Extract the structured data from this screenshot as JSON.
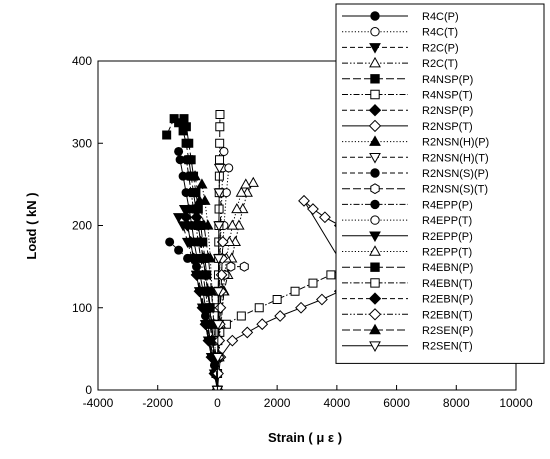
{
  "chart_data": {
    "type": "scatter",
    "xlabel": "Strain ( μ ε )",
    "ylabel": "Load ( kN )",
    "xlim": [
      -4000,
      10000
    ],
    "ylim": [
      0,
      400
    ],
    "xticks": [
      -4000,
      -2000,
      0,
      2000,
      4000,
      6000,
      8000,
      10000
    ],
    "yticks": [
      0,
      100,
      200,
      300,
      400
    ],
    "xtick_labels": [
      "-4000",
      "-2000",
      "0",
      "2000",
      "4000",
      "6000",
      "8000",
      "10000"
    ],
    "ytick_labels": [
      "0",
      "100",
      "200",
      "300",
      "400"
    ],
    "grid": false,
    "legend_position": "top-right",
    "series": [
      {
        "name": "R4C(P)",
        "marker": "circle",
        "fill": "filled",
        "dash": "solid",
        "points": [
          [
            0,
            0
          ],
          [
            -80,
            20
          ],
          [
            -160,
            40
          ],
          [
            -240,
            60
          ],
          [
            -320,
            80
          ],
          [
            -400,
            100
          ],
          [
            -480,
            120
          ],
          [
            -580,
            140
          ],
          [
            -680,
            160
          ],
          [
            -780,
            180
          ],
          [
            -860,
            200
          ],
          [
            -950,
            220
          ],
          [
            -1050,
            240
          ],
          [
            -1150,
            260
          ],
          [
            -1250,
            280
          ],
          [
            -1300,
            290
          ]
        ]
      },
      {
        "name": "R4C(T)",
        "marker": "circle",
        "fill": "open",
        "dash": "dotted",
        "points": [
          [
            0,
            0
          ],
          [
            20,
            40
          ],
          [
            40,
            80
          ],
          [
            60,
            120
          ],
          [
            90,
            160
          ],
          [
            120,
            200
          ],
          [
            150,
            240
          ],
          [
            180,
            270
          ],
          [
            220,
            290
          ]
        ]
      },
      {
        "name": "R2C(P)",
        "marker": "triangle-down",
        "fill": "filled",
        "dash": "dashed",
        "points": [
          [
            0,
            0
          ],
          [
            -80,
            20
          ],
          [
            -180,
            40
          ],
          [
            -280,
            60
          ],
          [
            -380,
            80
          ],
          [
            -480,
            100
          ],
          [
            -580,
            120
          ],
          [
            -700,
            140
          ],
          [
            -850,
            160
          ],
          [
            -1000,
            180
          ],
          [
            -1150,
            200
          ],
          [
            -1300,
            210
          ]
        ]
      },
      {
        "name": "R2C(T)",
        "marker": "triangle-up",
        "fill": "open",
        "dash": "dash-dot-dot",
        "points": [
          [
            0,
            0
          ],
          [
            50,
            40
          ],
          [
            120,
            80
          ],
          [
            220,
            120
          ],
          [
            350,
            140
          ],
          [
            480,
            160
          ],
          [
            600,
            180
          ],
          [
            720,
            200
          ],
          [
            850,
            220
          ],
          [
            1000,
            240
          ],
          [
            1200,
            252
          ]
        ]
      },
      {
        "name": "R4NSP(P)",
        "marker": "square",
        "fill": "filled",
        "dash": "long-dash",
        "points": [
          [
            0,
            0
          ],
          [
            -50,
            20
          ],
          [
            -100,
            40
          ],
          [
            -150,
            60
          ],
          [
            -200,
            80
          ],
          [
            -260,
            100
          ],
          [
            -330,
            120
          ],
          [
            -400,
            140
          ],
          [
            -480,
            160
          ],
          [
            -560,
            180
          ],
          [
            -640,
            200
          ],
          [
            -720,
            220
          ],
          [
            -800,
            240
          ],
          [
            -880,
            260
          ],
          [
            -960,
            280
          ],
          [
            -1050,
            300
          ],
          [
            -1150,
            315
          ],
          [
            -1300,
            325
          ],
          [
            -1450,
            330
          ],
          [
            -1700,
            310
          ]
        ]
      },
      {
        "name": "R4NSP(T)",
        "marker": "square",
        "fill": "open",
        "dash": "dash-dot",
        "points": [
          [
            0,
            0
          ],
          [
            30,
            40
          ],
          [
            80,
            70
          ],
          [
            300,
            80
          ],
          [
            800,
            90
          ],
          [
            1400,
            100
          ],
          [
            2000,
            110
          ],
          [
            2600,
            120
          ],
          [
            3200,
            130
          ],
          [
            3800,
            140
          ],
          [
            4300,
            150
          ],
          [
            4500,
            160
          ]
        ]
      },
      {
        "name": "R2NSP(P)",
        "marker": "diamond",
        "fill": "filled",
        "dash": "dashed",
        "points": [
          [
            0,
            0
          ],
          [
            -100,
            20
          ],
          [
            -200,
            40
          ],
          [
            -300,
            60
          ],
          [
            -400,
            80
          ],
          [
            -500,
            100
          ],
          [
            -600,
            120
          ],
          [
            -700,
            140
          ],
          [
            -800,
            160
          ],
          [
            -900,
            180
          ],
          [
            -1000,
            200
          ],
          [
            -1050,
            210
          ]
        ]
      },
      {
        "name": "R2NSP(T)",
        "marker": "diamond",
        "fill": "open",
        "dash": "solid",
        "points": [
          [
            0,
            0
          ],
          [
            100,
            40
          ],
          [
            500,
            60
          ],
          [
            1000,
            70
          ],
          [
            1500,
            80
          ],
          [
            2100,
            90
          ],
          [
            2800,
            100
          ],
          [
            3500,
            110
          ],
          [
            4100,
            120
          ],
          [
            4400,
            140
          ],
          [
            2900,
            230
          ],
          [
            3200,
            220
          ],
          [
            3600,
            210
          ],
          [
            4100,
            200
          ]
        ]
      },
      {
        "name": "R2NSN(H)(P)",
        "marker": "triangle-up",
        "fill": "filled",
        "dash": "dotted",
        "points": [
          [
            0,
            0
          ],
          [
            -60,
            40
          ],
          [
            -120,
            80
          ],
          [
            -180,
            120
          ],
          [
            -240,
            160
          ],
          [
            -320,
            200
          ],
          [
            -420,
            230
          ],
          [
            -520,
            250
          ]
        ]
      },
      {
        "name": "R2NSN(H)(T)",
        "marker": "triangle-down",
        "fill": "open",
        "dash": "dashed",
        "points": [
          [
            0,
            0
          ],
          [
            20,
            40
          ],
          [
            40,
            80
          ],
          [
            60,
            120
          ],
          [
            80,
            160
          ],
          [
            100,
            200
          ],
          [
            120,
            240
          ]
        ]
      },
      {
        "name": "R2NSN(S)(P)",
        "marker": "circle",
        "fill": "filled",
        "dash": "dashed",
        "points": [
          [
            0,
            0
          ],
          [
            -100,
            30
          ],
          [
            -250,
            60
          ],
          [
            -400,
            90
          ],
          [
            -550,
            120
          ],
          [
            -700,
            150
          ],
          [
            -1000,
            160
          ],
          [
            -1300,
            170
          ],
          [
            -1600,
            180
          ]
        ]
      },
      {
        "name": "R2NSN(S)(T)",
        "marker": "hexagon",
        "fill": "open",
        "dash": "long-dash",
        "points": [
          [
            0,
            0
          ],
          [
            30,
            40
          ],
          [
            60,
            80
          ],
          [
            120,
            120
          ],
          [
            250,
            140
          ],
          [
            450,
            150
          ],
          [
            900,
            150
          ]
        ]
      },
      {
        "name": "R4EPP(P)",
        "marker": "circle",
        "fill": "filled",
        "dash": "dash-dot",
        "points": [
          [
            0,
            0
          ],
          [
            -60,
            20
          ],
          [
            -120,
            40
          ],
          [
            -180,
            60
          ],
          [
            -250,
            80
          ],
          [
            -320,
            100
          ],
          [
            -400,
            120
          ],
          [
            -480,
            140
          ],
          [
            -560,
            160
          ],
          [
            -640,
            180
          ],
          [
            -720,
            200
          ],
          [
            -800,
            220
          ],
          [
            -880,
            240
          ],
          [
            -960,
            260
          ],
          [
            -1040,
            280
          ]
        ]
      },
      {
        "name": "R4EPP(T)",
        "marker": "circle",
        "fill": "open",
        "dash": "dotted",
        "points": [
          [
            0,
            0
          ],
          [
            40,
            40
          ],
          [
            80,
            80
          ],
          [
            120,
            120
          ],
          [
            160,
            160
          ],
          [
            220,
            200
          ],
          [
            300,
            240
          ],
          [
            380,
            270
          ]
        ]
      },
      {
        "name": "R2EPP(P)",
        "marker": "triangle-down",
        "fill": "filled",
        "dash": "solid",
        "points": [
          [
            0,
            0
          ],
          [
            -100,
            20
          ],
          [
            -200,
            40
          ],
          [
            -300,
            60
          ],
          [
            -400,
            80
          ],
          [
            -500,
            100
          ],
          [
            -600,
            120
          ],
          [
            -700,
            140
          ],
          [
            -800,
            160
          ],
          [
            -900,
            180
          ],
          [
            -1000,
            200
          ],
          [
            -1100,
            220
          ]
        ]
      },
      {
        "name": "R2EPP(T)",
        "marker": "triangle-up",
        "fill": "open",
        "dash": "dotted",
        "points": [
          [
            0,
            0
          ],
          [
            50,
            40
          ],
          [
            100,
            80
          ],
          [
            200,
            120
          ],
          [
            300,
            160
          ],
          [
            400,
            180
          ],
          [
            500,
            200
          ],
          [
            650,
            220
          ],
          [
            800,
            240
          ],
          [
            950,
            250
          ]
        ]
      },
      {
        "name": "R4EBN(P)",
        "marker": "square",
        "fill": "filled",
        "dash": "long-dash",
        "points": [
          [
            0,
            0
          ],
          [
            -40,
            20
          ],
          [
            -90,
            40
          ],
          [
            -140,
            60
          ],
          [
            -190,
            80
          ],
          [
            -240,
            100
          ],
          [
            -300,
            120
          ],
          [
            -360,
            140
          ],
          [
            -420,
            160
          ],
          [
            -490,
            180
          ],
          [
            -560,
            200
          ],
          [
            -640,
            220
          ],
          [
            -720,
            240
          ],
          [
            -800,
            260
          ],
          [
            -880,
            280
          ],
          [
            -960,
            300
          ],
          [
            -1040,
            320
          ],
          [
            -1120,
            330
          ]
        ]
      },
      {
        "name": "R4EBN(T)",
        "marker": "square",
        "fill": "open",
        "dash": "dash-dot",
        "points": [
          [
            0,
            0
          ],
          [
            5,
            20
          ],
          [
            10,
            40
          ],
          [
            15,
            60
          ],
          [
            20,
            80
          ],
          [
            25,
            100
          ],
          [
            30,
            120
          ],
          [
            35,
            140
          ],
          [
            40,
            160
          ],
          [
            45,
            180
          ],
          [
            50,
            200
          ],
          [
            55,
            220
          ],
          [
            60,
            240
          ],
          [
            65,
            260
          ],
          [
            70,
            280
          ],
          [
            75,
            300
          ],
          [
            80,
            320
          ],
          [
            85,
            335
          ]
        ]
      },
      {
        "name": "R2EBN(P)",
        "marker": "diamond",
        "fill": "filled",
        "dash": "dashed",
        "points": [
          [
            0,
            0
          ],
          [
            -50,
            20
          ],
          [
            -100,
            40
          ],
          [
            -150,
            60
          ],
          [
            -200,
            80
          ],
          [
            -260,
            100
          ],
          [
            -320,
            120
          ],
          [
            -400,
            140
          ],
          [
            -480,
            160
          ],
          [
            -560,
            180
          ],
          [
            -640,
            200
          ],
          [
            -700,
            210
          ]
        ]
      },
      {
        "name": "R2EBN(T)",
        "marker": "diamond",
        "fill": "open",
        "dash": "dash-dot-dot",
        "points": [
          [
            0,
            0
          ],
          [
            20,
            20
          ],
          [
            40,
            40
          ],
          [
            60,
            60
          ],
          [
            80,
            80
          ],
          [
            100,
            100
          ],
          [
            120,
            120
          ],
          [
            140,
            140
          ],
          [
            160,
            160
          ],
          [
            180,
            180
          ]
        ]
      },
      {
        "name": "R2SEN(P)",
        "marker": "triangle-up",
        "fill": "filled",
        "dash": "long-dash",
        "points": [
          [
            0,
            0
          ],
          [
            -60,
            40
          ],
          [
            -120,
            80
          ],
          [
            -200,
            120
          ],
          [
            -300,
            160
          ],
          [
            -450,
            200
          ],
          [
            -600,
            230
          ],
          [
            -750,
            260
          ]
        ]
      },
      {
        "name": "R2SEN(T)",
        "marker": "triangle-down",
        "fill": "open",
        "dash": "solid",
        "points": [
          [
            0,
            0
          ],
          [
            10,
            40
          ],
          [
            20,
            80
          ],
          [
            30,
            120
          ],
          [
            40,
            160
          ],
          [
            50,
            200
          ],
          [
            60,
            240
          ],
          [
            70,
            270
          ]
        ]
      }
    ]
  }
}
